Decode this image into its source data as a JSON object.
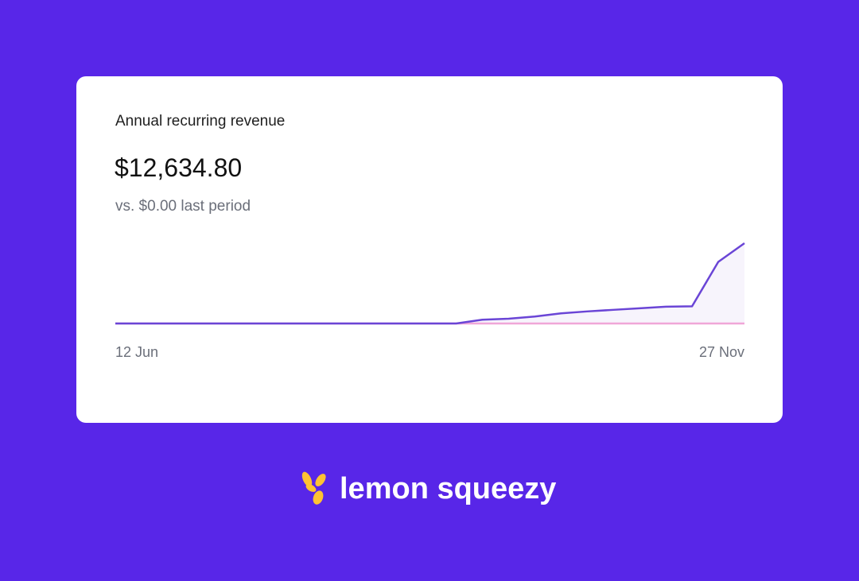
{
  "brand": "lemon squeezy",
  "chart_data": {
    "type": "line",
    "title": "Annual recurring revenue",
    "subtitle": "$12,634.80",
    "annotation": "vs. $0.00 last period",
    "categories": [
      "12 Jun",
      null,
      null,
      null,
      null,
      null,
      null,
      null,
      null,
      null,
      null,
      null,
      null,
      null,
      null,
      null,
      null,
      null,
      null,
      null,
      null,
      null,
      null,
      null,
      "27 Nov"
    ],
    "ylim": [
      0,
      12634.8
    ],
    "series": [
      {
        "color": "#f0a6d8",
        "values": [
          0,
          0,
          0,
          0,
          0,
          0,
          0,
          0,
          0,
          0,
          0,
          0,
          0,
          0,
          0,
          0,
          0,
          0,
          0,
          0,
          0,
          0,
          0,
          0,
          0
        ]
      },
      {
        "color": "#6a45d6",
        "area": "#f7f4fc",
        "values": [
          0,
          0,
          0,
          0,
          0,
          0,
          0,
          0,
          0,
          0,
          0,
          0,
          0,
          0,
          600,
          750,
          1100,
          1600,
          1900,
          2150,
          2400,
          2650,
          2700,
          9700,
          12634.8
        ]
      }
    ]
  }
}
